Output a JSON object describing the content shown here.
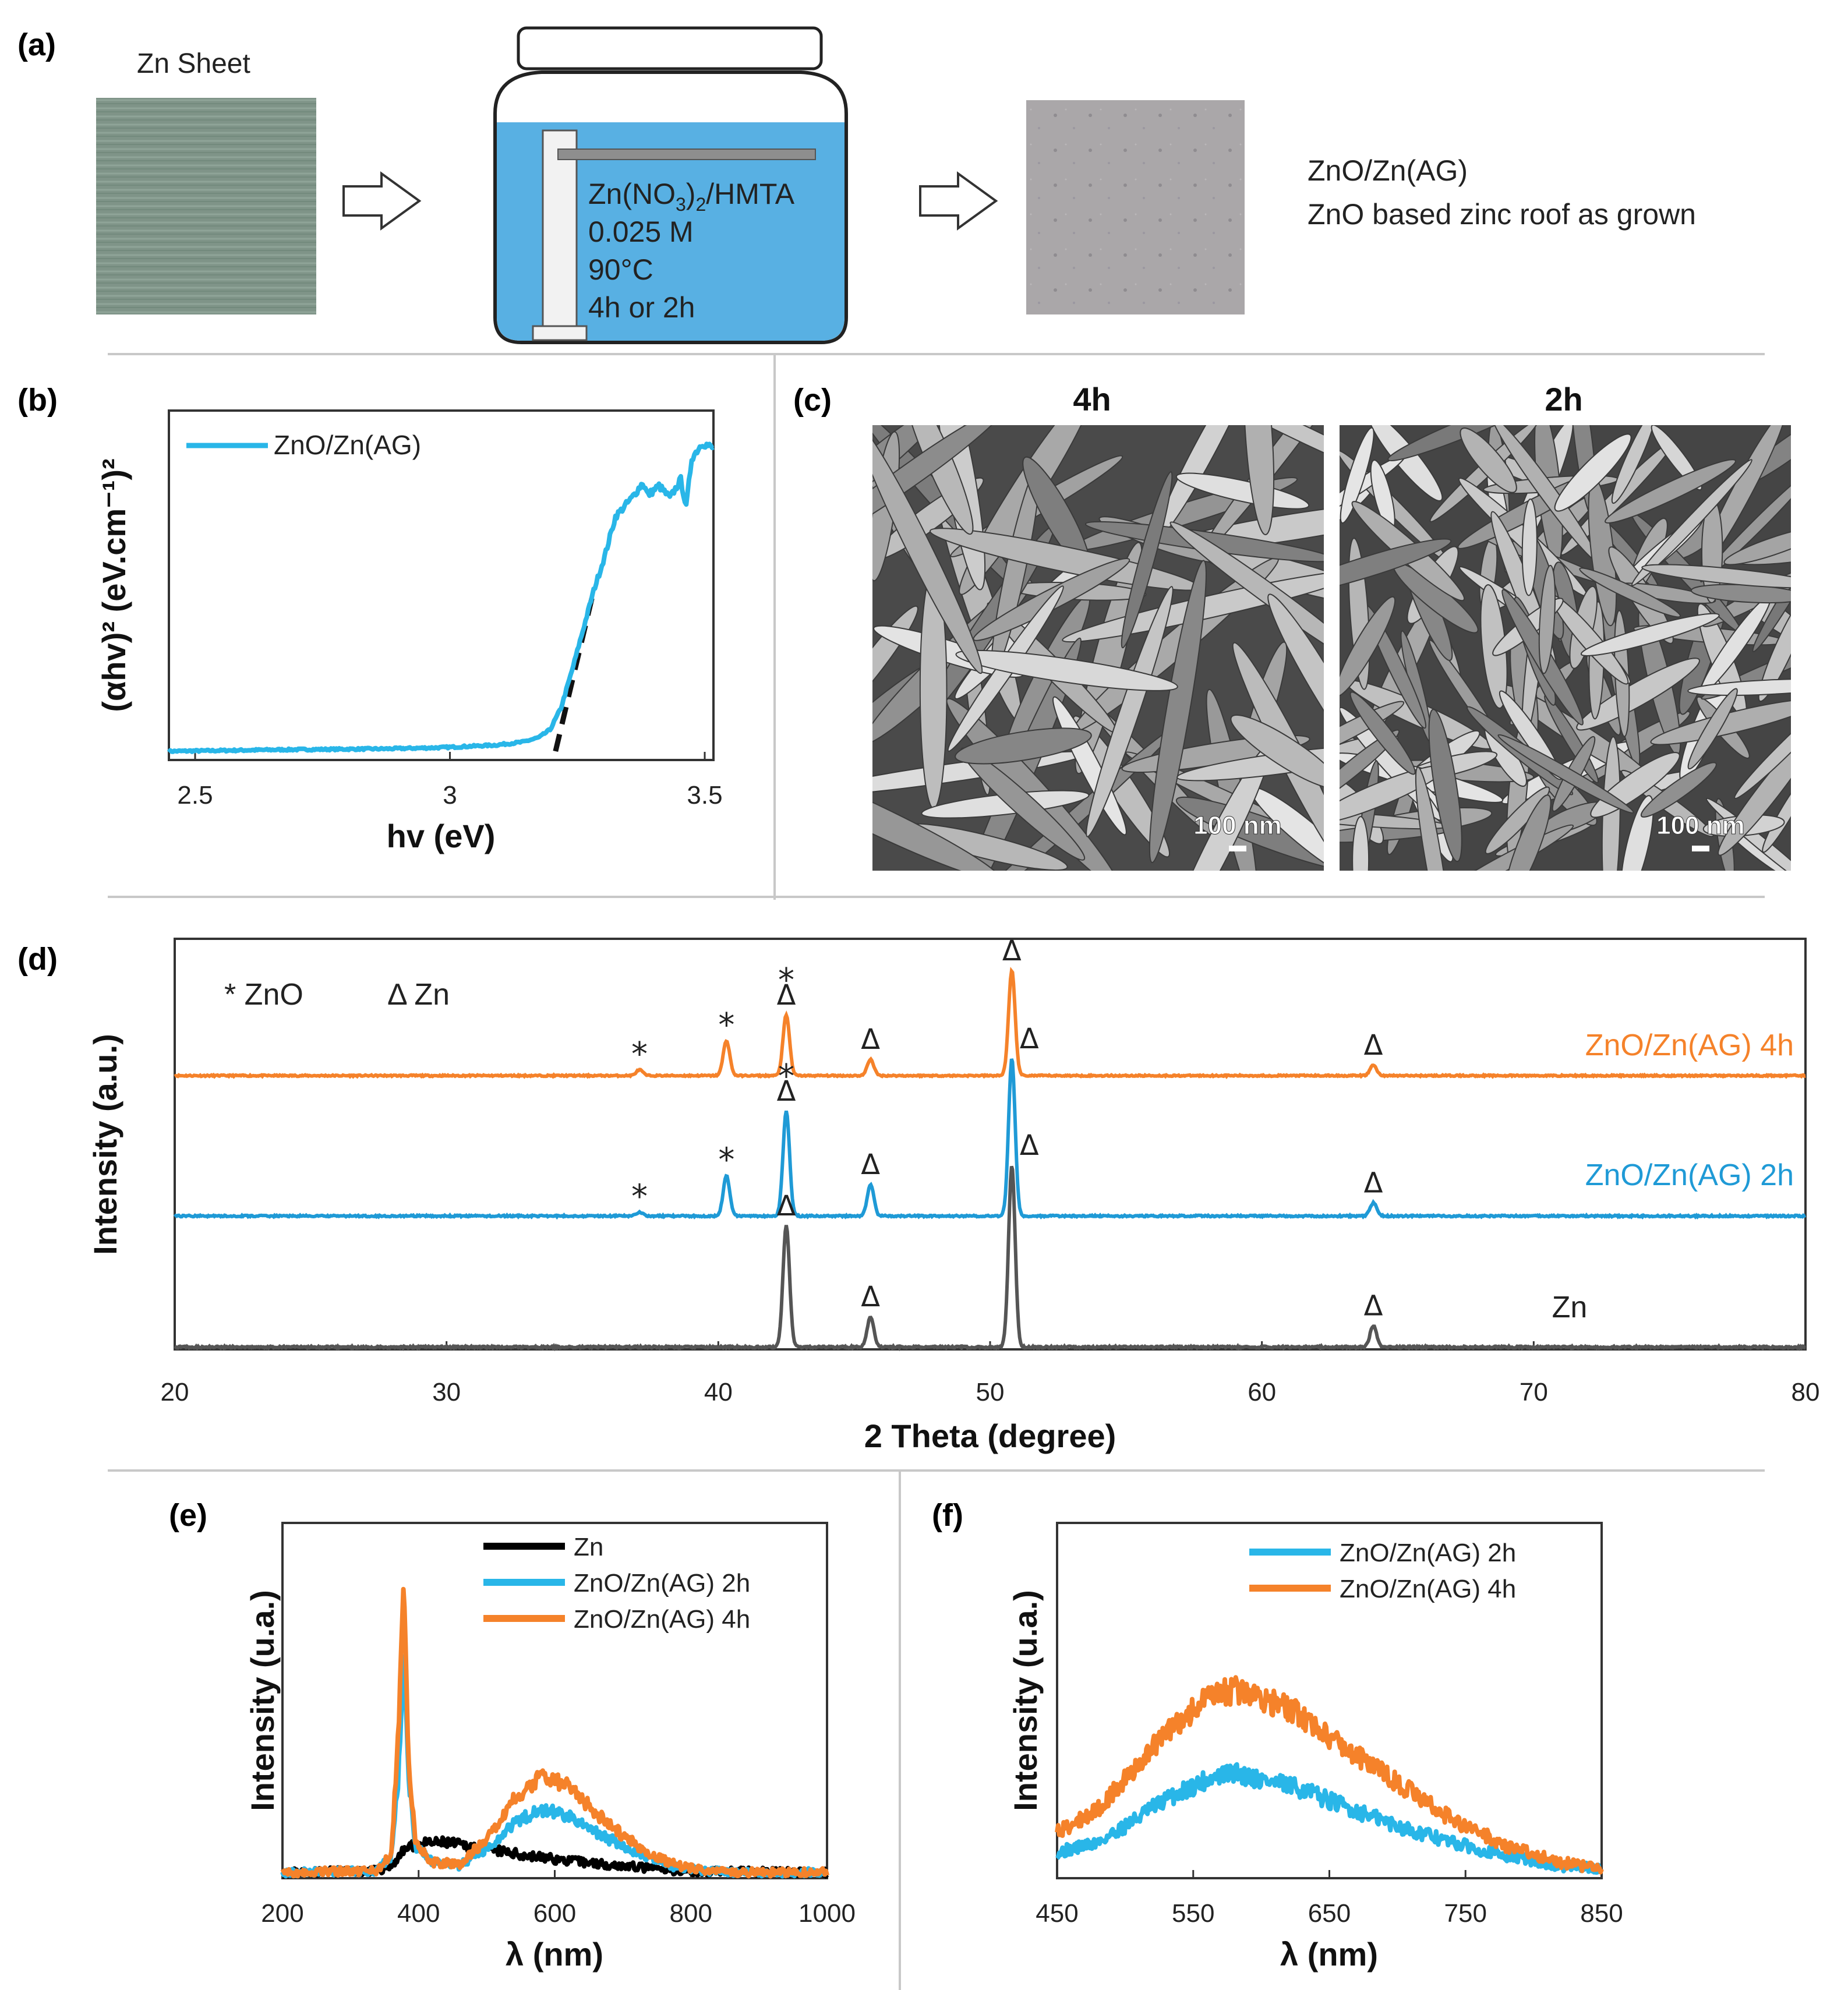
{
  "colors": {
    "zn": "#555555",
    "zn_e": "#000000",
    "h2": "#29b6e8",
    "h2_d": "#1f9ad6",
    "h4": "#f5822a",
    "water": "#58b0e3",
    "zn_sheet": "#7f9488",
    "zno_sheet": "#a9a6a8",
    "sem": "#8d8d8d"
  },
  "panel_a": {
    "label": "(a)",
    "zn_sheet_label": "Zn Sheet",
    "beaker_lines": [
      "Zn(NO",
      "3",
      ")",
      "2",
      "/HMTA"
    ],
    "beaker_conc": "0.025 M",
    "beaker_temp": "90°C",
    "beaker_time": "4h or 2h",
    "product_line1": "ZnO/Zn(AG)",
    "product_line2": "ZnO  based  zinc roof as grown",
    "icons": [
      "arrow-right-icon",
      "arrow-right-icon"
    ]
  },
  "panel_c": {
    "label": "(c)",
    "titles": [
      "4h",
      "2h"
    ],
    "scale_bars": [
      "100 nm",
      "100 nm"
    ]
  },
  "chart_data": [
    {
      "id": "b",
      "panel_label": "(b)",
      "type": "line",
      "xlabel": "hv (eV)",
      "ylabel": "(αhv)² (eV.cm⁻¹)²",
      "xlim": [
        2.5,
        3.5
      ],
      "xticks": [
        "2.5",
        "3",
        "3.5"
      ],
      "ylim": [
        0,
        1
      ],
      "legend": "top-left",
      "grid": false,
      "series": [
        {
          "name": "ZnO/Zn(AG)",
          "x": [
            2.5,
            2.7,
            2.9,
            3.0,
            3.1,
            3.15,
            3.18,
            3.2,
            3.22,
            3.24,
            3.26,
            3.28,
            3.3,
            3.32,
            3.35,
            3.37,
            3.38,
            3.4,
            3.42,
            3.44,
            3.45,
            3.46,
            3.48,
            3.5
          ],
          "y": [
            0.0,
            0.005,
            0.008,
            0.012,
            0.02,
            0.03,
            0.045,
            0.07,
            0.14,
            0.26,
            0.39,
            0.52,
            0.63,
            0.76,
            0.82,
            0.87,
            0.83,
            0.86,
            0.82,
            0.88,
            0.79,
            0.95,
            1.0,
            0.98
          ]
        }
      ],
      "tangent": {
        "x": [
          3.21,
          3.28
        ],
        "y": [
          0.0,
          0.52
        ]
      }
    },
    {
      "id": "d",
      "panel_label": "(d)",
      "type": "line",
      "xlabel": "2 Theta (degree)",
      "ylabel": "Intensity (a.u.)",
      "xlim": [
        20,
        80
      ],
      "xticks": [
        "20",
        "30",
        "40",
        "50",
        "60",
        "70",
        "80"
      ],
      "grid": false,
      "legend_text": [
        "* ZnO",
        "Δ  Zn"
      ],
      "series": [
        {
          "name": "ZnO/Zn(AG) 4h",
          "peaks": [
            [
              37.1,
              0.05
            ],
            [
              40.3,
              0.3
            ],
            [
              42.5,
              0.52
            ],
            [
              45.6,
              0.14
            ],
            [
              50.8,
              0.9
            ],
            [
              64.1,
              0.09
            ]
          ],
          "markers": [
            [
              37.1,
              "*"
            ],
            [
              40.3,
              "*"
            ],
            [
              42.5,
              "*Δ"
            ],
            [
              45.6,
              "Δ"
            ],
            [
              50.8,
              "Δ"
            ],
            [
              64.1,
              "Δ"
            ]
          ]
        },
        {
          "name": "ZnO/Zn(AG) 2h",
          "peaks": [
            [
              37.1,
              0.03
            ],
            [
              40.3,
              0.31
            ],
            [
              42.5,
              0.8
            ],
            [
              45.6,
              0.24
            ],
            [
              50.8,
              1.2
            ],
            [
              64.1,
              0.1
            ]
          ],
          "markers": [
            [
              37.1,
              "*"
            ],
            [
              40.3,
              "*"
            ],
            [
              42.5,
              "*Δ"
            ],
            [
              45.6,
              "Δ"
            ],
            [
              50.8,
              "Δ"
            ],
            [
              64.1,
              "Δ"
            ]
          ]
        },
        {
          "name": "Zn",
          "peaks": [
            [
              42.5,
              0.8
            ],
            [
              45.6,
              0.2
            ],
            [
              50.8,
              1.2
            ],
            [
              64.1,
              0.14
            ]
          ],
          "markers": [
            [
              42.5,
              "Δ"
            ],
            [
              45.6,
              "Δ"
            ],
            [
              50.8,
              "Δ"
            ],
            [
              64.1,
              "Δ"
            ]
          ]
        }
      ]
    },
    {
      "id": "e",
      "panel_label": "(e)",
      "type": "line",
      "xlabel": "λ (nm)",
      "ylabel": "Intensity (u.a.)",
      "xlim": [
        200,
        1000
      ],
      "xticks": [
        "200",
        "400",
        "600",
        "800",
        "1000"
      ],
      "ylim": [
        0,
        1
      ],
      "legend": "top-center",
      "grid": false,
      "series": [
        {
          "name": "Zn",
          "x": [
            200,
            340,
            360,
            380,
            400,
            440,
            500,
            560,
            620,
            700,
            760,
            800,
            1000
          ],
          "y": [
            0.0,
            0.005,
            0.02,
            0.07,
            0.085,
            0.09,
            0.07,
            0.05,
            0.035,
            0.02,
            0.008,
            0.003,
            0.0
          ]
        },
        {
          "name": "ZnO/Zn(AG) 2h",
          "x": [
            200,
            340,
            360,
            370,
            378,
            385,
            395,
            420,
            460,
            500,
            540,
            580,
            620,
            660,
            700,
            740,
            780,
            820,
            860,
            1000
          ],
          "y": [
            0.0,
            0.004,
            0.05,
            0.28,
            0.68,
            0.3,
            0.08,
            0.03,
            0.02,
            0.07,
            0.15,
            0.19,
            0.17,
            0.12,
            0.08,
            0.04,
            0.015,
            0.005,
            0.0,
            0.0
          ]
        },
        {
          "name": "ZnO/Zn(AG) 4h",
          "x": [
            200,
            340,
            360,
            370,
            378,
            385,
            395,
            420,
            460,
            500,
            540,
            580,
            620,
            660,
            700,
            740,
            780,
            820,
            860,
            1000
          ],
          "y": [
            0.0,
            0.005,
            0.06,
            0.4,
            0.85,
            0.35,
            0.09,
            0.03,
            0.025,
            0.1,
            0.22,
            0.29,
            0.26,
            0.18,
            0.11,
            0.055,
            0.02,
            0.006,
            0.0,
            0.0
          ]
        }
      ]
    },
    {
      "id": "f",
      "panel_label": "(f)",
      "type": "line",
      "xlabel": "λ (nm)",
      "ylabel": "Intensity (u.a.)",
      "xlim": [
        450,
        850
      ],
      "xticks": [
        "450",
        "550",
        "650",
        "750",
        "850"
      ],
      "ylim": [
        0,
        1
      ],
      "legend": "top-center",
      "grid": false,
      "series": [
        {
          "name": "ZnO/Zn(AG) 2h",
          "x": [
            450,
            480,
            500,
            530,
            560,
            580,
            600,
            630,
            660,
            700,
            740,
            780,
            820,
            850
          ],
          "y": [
            0.06,
            0.09,
            0.14,
            0.22,
            0.28,
            0.3,
            0.28,
            0.25,
            0.2,
            0.14,
            0.09,
            0.05,
            0.02,
            0.01
          ]
        },
        {
          "name": "ZnO/Zn(AG) 4h",
          "x": [
            450,
            480,
            500,
            530,
            560,
            580,
            600,
            630,
            660,
            700,
            740,
            780,
            820,
            850
          ],
          "y": [
            0.12,
            0.19,
            0.28,
            0.42,
            0.52,
            0.55,
            0.53,
            0.47,
            0.38,
            0.27,
            0.16,
            0.08,
            0.03,
            0.01
          ]
        }
      ]
    }
  ]
}
